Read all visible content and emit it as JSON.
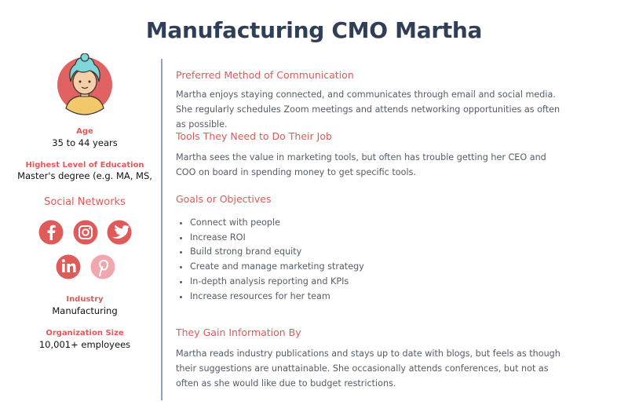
{
  "title": "Manufacturing CMO Martha",
  "profile": {
    "fields": [
      {
        "label": "Age",
        "value": "35 to 44 years"
      },
      {
        "label": "Highest Level of Education",
        "value": "Master's degree (e.g. MA, MS,"
      }
    ],
    "social_networks": "Social Networks",
    "fields_after": [
      {
        "label": "Industry",
        "value": "Manufacturing"
      },
      {
        "label": "Organization Size",
        "value": "10,001+ employees"
      }
    ]
  },
  "sections": [
    {
      "heading": "Preferred Method of Communication",
      "text": "Martha enjoys staying connected, and communicates through email and social media. She regularly schedules Zoom meetings and attends networking opportunities as often as possible."
    },
    {
      "heading": "Tools They Need to Do Their Job",
      "text": "Martha sees the value in marketing tools, but often has trouble getting her CEO and COO on board in spending money to get specific tools."
    },
    {
      "heading": "Goals or Objectives",
      "items": [
        "Connect with people",
        "Increase ROI",
        "Build strong brand equity",
        "Create and manage marketing strategy",
        "In-depth analysis reporting and KPIs",
        "Increase resources for her team"
      ]
    },
    {
      "heading": "They Gain Information By",
      "text": "Martha reads industry publications and stays up to date with blogs, but feels as though their suggestions are unattainable. She occasionally attends conferences, but not as often as she would like due to budget restrictions."
    }
  ]
}
